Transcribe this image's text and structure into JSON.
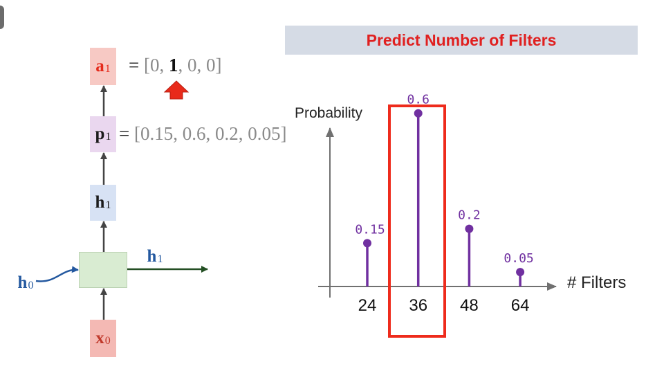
{
  "title": "Predict Number of Filters",
  "rnn": {
    "x0": {
      "main": "x",
      "sub": "0"
    },
    "h1_box": {
      "main": "h",
      "sub": "1"
    },
    "p1": {
      "main": "p",
      "sub": "1"
    },
    "a1": {
      "main": "a",
      "sub": "1"
    },
    "h0_label": {
      "main": "h",
      "sub": "0"
    },
    "h1_label": {
      "main": "h",
      "sub": "1"
    },
    "p_vector": {
      "eq": "=",
      "open": "[",
      "items": [
        "0.15",
        "0.6",
        "0.2",
        "0.05"
      ],
      "close": "]"
    },
    "a_vector": {
      "eq": "=",
      "open": "[",
      "items": [
        "0",
        "1",
        "0",
        "0"
      ],
      "close": "]",
      "selected_index": 1
    }
  },
  "chart_data": {
    "type": "stem",
    "ylabel": "Probability",
    "xlabel": "# Filters",
    "categories": [
      "24",
      "36",
      "48",
      "64"
    ],
    "values": [
      0.15,
      0.6,
      0.2,
      0.05
    ],
    "value_labels": [
      "0.15",
      "0.6",
      "0.2",
      "0.05"
    ],
    "highlight_index": 1,
    "ylim": [
      0,
      0.7
    ],
    "colors": {
      "stem": "#7030a0",
      "highlight": "#ee2b1c",
      "axis": "#707070"
    }
  },
  "colors": {
    "x_box": "#f4b9b4",
    "x_text": "#c0392b",
    "h_box": "#d7e2f4",
    "h_text": "#1a1a1a",
    "p_box": "#ead7ef",
    "p_text": "#1a1a1a",
    "a_box": "#f7c9c4",
    "a_text": "#e52b1c",
    "rnn_cell": "#d9ecd2",
    "h_arrow": "#234f23",
    "h0_color": "#23589f",
    "arrow_red": "#e82a1a"
  }
}
